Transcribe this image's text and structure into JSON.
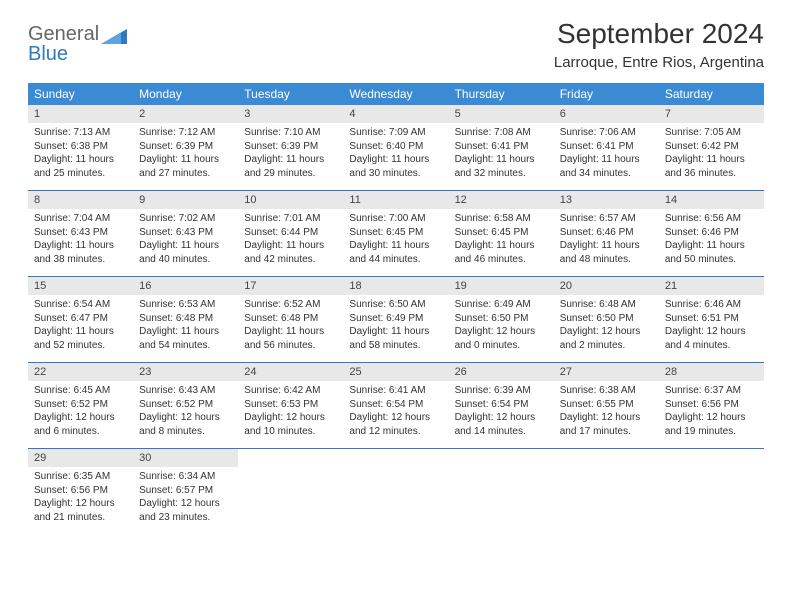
{
  "logo": {
    "line1": "General",
    "line2": "Blue"
  },
  "title": "September 2024",
  "location": "Larroque, Entre Rios, Argentina",
  "colors": {
    "header_bg": "#3b8bd4",
    "header_text": "#ffffff",
    "daynum_bg": "#e8e8e8",
    "border": "#2f78c3",
    "logo_gray": "#666666",
    "logo_blue": "#2f78c3"
  },
  "weekdays": [
    "Sunday",
    "Monday",
    "Tuesday",
    "Wednesday",
    "Thursday",
    "Friday",
    "Saturday"
  ],
  "weeks": [
    [
      {
        "n": "1",
        "sr": "Sunrise: 7:13 AM",
        "ss": "Sunset: 6:38 PM",
        "dl1": "Daylight: 11 hours",
        "dl2": "and 25 minutes."
      },
      {
        "n": "2",
        "sr": "Sunrise: 7:12 AM",
        "ss": "Sunset: 6:39 PM",
        "dl1": "Daylight: 11 hours",
        "dl2": "and 27 minutes."
      },
      {
        "n": "3",
        "sr": "Sunrise: 7:10 AM",
        "ss": "Sunset: 6:39 PM",
        "dl1": "Daylight: 11 hours",
        "dl2": "and 29 minutes."
      },
      {
        "n": "4",
        "sr": "Sunrise: 7:09 AM",
        "ss": "Sunset: 6:40 PM",
        "dl1": "Daylight: 11 hours",
        "dl2": "and 30 minutes."
      },
      {
        "n": "5",
        "sr": "Sunrise: 7:08 AM",
        "ss": "Sunset: 6:41 PM",
        "dl1": "Daylight: 11 hours",
        "dl2": "and 32 minutes."
      },
      {
        "n": "6",
        "sr": "Sunrise: 7:06 AM",
        "ss": "Sunset: 6:41 PM",
        "dl1": "Daylight: 11 hours",
        "dl2": "and 34 minutes."
      },
      {
        "n": "7",
        "sr": "Sunrise: 7:05 AM",
        "ss": "Sunset: 6:42 PM",
        "dl1": "Daylight: 11 hours",
        "dl2": "and 36 minutes."
      }
    ],
    [
      {
        "n": "8",
        "sr": "Sunrise: 7:04 AM",
        "ss": "Sunset: 6:43 PM",
        "dl1": "Daylight: 11 hours",
        "dl2": "and 38 minutes."
      },
      {
        "n": "9",
        "sr": "Sunrise: 7:02 AM",
        "ss": "Sunset: 6:43 PM",
        "dl1": "Daylight: 11 hours",
        "dl2": "and 40 minutes."
      },
      {
        "n": "10",
        "sr": "Sunrise: 7:01 AM",
        "ss": "Sunset: 6:44 PM",
        "dl1": "Daylight: 11 hours",
        "dl2": "and 42 minutes."
      },
      {
        "n": "11",
        "sr": "Sunrise: 7:00 AM",
        "ss": "Sunset: 6:45 PM",
        "dl1": "Daylight: 11 hours",
        "dl2": "and 44 minutes."
      },
      {
        "n": "12",
        "sr": "Sunrise: 6:58 AM",
        "ss": "Sunset: 6:45 PM",
        "dl1": "Daylight: 11 hours",
        "dl2": "and 46 minutes."
      },
      {
        "n": "13",
        "sr": "Sunrise: 6:57 AM",
        "ss": "Sunset: 6:46 PM",
        "dl1": "Daylight: 11 hours",
        "dl2": "and 48 minutes."
      },
      {
        "n": "14",
        "sr": "Sunrise: 6:56 AM",
        "ss": "Sunset: 6:46 PM",
        "dl1": "Daylight: 11 hours",
        "dl2": "and 50 minutes."
      }
    ],
    [
      {
        "n": "15",
        "sr": "Sunrise: 6:54 AM",
        "ss": "Sunset: 6:47 PM",
        "dl1": "Daylight: 11 hours",
        "dl2": "and 52 minutes."
      },
      {
        "n": "16",
        "sr": "Sunrise: 6:53 AM",
        "ss": "Sunset: 6:48 PM",
        "dl1": "Daylight: 11 hours",
        "dl2": "and 54 minutes."
      },
      {
        "n": "17",
        "sr": "Sunrise: 6:52 AM",
        "ss": "Sunset: 6:48 PM",
        "dl1": "Daylight: 11 hours",
        "dl2": "and 56 minutes."
      },
      {
        "n": "18",
        "sr": "Sunrise: 6:50 AM",
        "ss": "Sunset: 6:49 PM",
        "dl1": "Daylight: 11 hours",
        "dl2": "and 58 minutes."
      },
      {
        "n": "19",
        "sr": "Sunrise: 6:49 AM",
        "ss": "Sunset: 6:50 PM",
        "dl1": "Daylight: 12 hours",
        "dl2": "and 0 minutes."
      },
      {
        "n": "20",
        "sr": "Sunrise: 6:48 AM",
        "ss": "Sunset: 6:50 PM",
        "dl1": "Daylight: 12 hours",
        "dl2": "and 2 minutes."
      },
      {
        "n": "21",
        "sr": "Sunrise: 6:46 AM",
        "ss": "Sunset: 6:51 PM",
        "dl1": "Daylight: 12 hours",
        "dl2": "and 4 minutes."
      }
    ],
    [
      {
        "n": "22",
        "sr": "Sunrise: 6:45 AM",
        "ss": "Sunset: 6:52 PM",
        "dl1": "Daylight: 12 hours",
        "dl2": "and 6 minutes."
      },
      {
        "n": "23",
        "sr": "Sunrise: 6:43 AM",
        "ss": "Sunset: 6:52 PM",
        "dl1": "Daylight: 12 hours",
        "dl2": "and 8 minutes."
      },
      {
        "n": "24",
        "sr": "Sunrise: 6:42 AM",
        "ss": "Sunset: 6:53 PM",
        "dl1": "Daylight: 12 hours",
        "dl2": "and 10 minutes."
      },
      {
        "n": "25",
        "sr": "Sunrise: 6:41 AM",
        "ss": "Sunset: 6:54 PM",
        "dl1": "Daylight: 12 hours",
        "dl2": "and 12 minutes."
      },
      {
        "n": "26",
        "sr": "Sunrise: 6:39 AM",
        "ss": "Sunset: 6:54 PM",
        "dl1": "Daylight: 12 hours",
        "dl2": "and 14 minutes."
      },
      {
        "n": "27",
        "sr": "Sunrise: 6:38 AM",
        "ss": "Sunset: 6:55 PM",
        "dl1": "Daylight: 12 hours",
        "dl2": "and 17 minutes."
      },
      {
        "n": "28",
        "sr": "Sunrise: 6:37 AM",
        "ss": "Sunset: 6:56 PM",
        "dl1": "Daylight: 12 hours",
        "dl2": "and 19 minutes."
      }
    ],
    [
      {
        "n": "29",
        "sr": "Sunrise: 6:35 AM",
        "ss": "Sunset: 6:56 PM",
        "dl1": "Daylight: 12 hours",
        "dl2": "and 21 minutes."
      },
      {
        "n": "30",
        "sr": "Sunrise: 6:34 AM",
        "ss": "Sunset: 6:57 PM",
        "dl1": "Daylight: 12 hours",
        "dl2": "and 23 minutes."
      },
      null,
      null,
      null,
      null,
      null
    ]
  ]
}
